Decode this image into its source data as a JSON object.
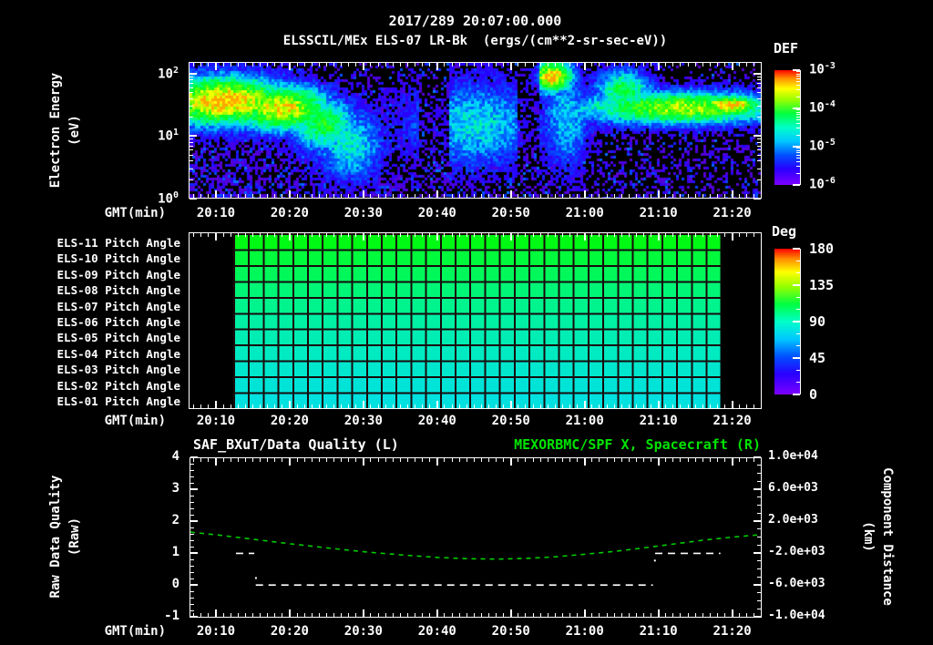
{
  "header": {
    "datetime": "2017/289 20:07:00.000",
    "subtitle": "ELSSCIL/MEx ELS-07 LR-Bk  (ergs/(cm**2-sr-sec-eV))"
  },
  "xaxis": {
    "label": "GMT(min)",
    "tick_labels": [
      "20:10",
      "20:20",
      "20:30",
      "20:40",
      "20:50",
      "21:00",
      "21:10",
      "21:20"
    ],
    "tick_minutes": [
      10,
      20,
      30,
      40,
      50,
      60,
      70,
      80
    ],
    "start_minute": 6.3,
    "end_minute": 84.0
  },
  "spectrogram_axis": {
    "ylabel_lines": [
      "Electron Energy",
      "(eV)"
    ],
    "ytick_exponents": [
      "2",
      "1",
      "0"
    ],
    "colorbar_title": "DEF",
    "colorbar_tick_exponents": [
      "-3",
      "-4",
      "-5",
      "-6"
    ]
  },
  "pitch_axis": {
    "row_labels": [
      "ELS-11 Pitch Angle",
      "ELS-10 Pitch Angle",
      "ELS-09 Pitch Angle",
      "ELS-08 Pitch Angle",
      "ELS-07 Pitch Angle",
      "ELS-06 Pitch Angle",
      "ELS-05 Pitch Angle",
      "ELS-04 Pitch Angle",
      "ELS-03 Pitch Angle",
      "ELS-02 Pitch Angle",
      "ELS-01 Pitch Angle"
    ],
    "colorbar_title": "Deg",
    "colorbar_ticks": [
      "180",
      "135",
      "90",
      "45",
      "0"
    ]
  },
  "bottom_axis": {
    "title_left": "SAF_BXuT/Data Quality (L)",
    "title_right": "MEXORBMC/SPF X, Spacecraft (R)",
    "title_right_color": "#00e400",
    "ylabel_left_lines": [
      "Raw Data Quality",
      "(Raw)"
    ],
    "ylabel_right_lines": [
      "Component Distance",
      "(km)"
    ],
    "yticks_left": [
      "4",
      "3",
      "2",
      "1",
      "0",
      "-1"
    ],
    "yticks_right": [
      "1.0e+04",
      "6.0e+03",
      "2.0e+03",
      "-2.0e+03",
      "-6.0e+03",
      "-1.0e+04"
    ]
  },
  "colors": {
    "background": "#000000",
    "axis": "#ffffff",
    "grid_line": "#170b0b",
    "quality_series": "#ffffff",
    "distance_series": "#00cc00"
  },
  "chart_data": [
    {
      "type": "heatmap",
      "name": "electron-energy-spectrogram",
      "title": "ELSSCIL/MEx ELS-07 LR-Bk",
      "units": "ergs/(cm**2-sr-sec-eV)",
      "xlabel": "GMT(min)",
      "ylabel": "Electron Energy (eV)",
      "x_range_gmt": [
        "20:06",
        "21:24"
      ],
      "y_scale": "log",
      "y_range_ev": [
        1,
        158
      ],
      "color_scale": {
        "label": "DEF",
        "min_exp": -6,
        "max_exp": -3,
        "scale": "log"
      },
      "features": [
        {
          "desc": "bright flux band 20:07-20:18 ~20-80 eV",
          "cx": 0.06,
          "sx": 0.1,
          "cy": 0.28,
          "sy": 0.15,
          "amp": 0.93
        },
        {
          "desc": "band continuation",
          "cx": 0.16,
          "sx": 0.07,
          "cy": 0.33,
          "sy": 0.14,
          "amp": 0.88
        },
        {
          "desc": "sloping band tail",
          "cx": 0.235,
          "sx": 0.05,
          "cy": 0.45,
          "sy": 0.16,
          "amp": 0.66
        },
        {
          "desc": "cyan blob 20:22-20:30 low energy",
          "cx": 0.28,
          "sx": 0.05,
          "cy": 0.6,
          "sy": 0.22,
          "amp": 0.5
        },
        {
          "desc": "mid cyan speckle 20:40-20:52",
          "cx": 0.5,
          "sx": 0.1,
          "cy": 0.45,
          "sy": 0.26,
          "amp": 0.47
        },
        {
          "desc": "bright streaks ~20:55 high energy",
          "cx": 0.635,
          "sx": 0.03,
          "cy": 0.1,
          "sy": 0.1,
          "amp": 0.92
        },
        {
          "desc": "streak tail downward",
          "cx": 0.66,
          "sx": 0.035,
          "cy": 0.4,
          "sy": 0.3,
          "amp": 0.45
        },
        {
          "desc": "green patch ~21:03 top",
          "cx": 0.76,
          "sx": 0.04,
          "cy": 0.2,
          "sy": 0.12,
          "amp": 0.65
        },
        {
          "desc": "right flux band 21:05-21:24 ~20-60 eV",
          "cx": 0.86,
          "sx": 0.15,
          "cy": 0.33,
          "sy": 0.1,
          "amp": 0.8
        },
        {
          "desc": "right band yellow hotspot ~21:15",
          "cx": 0.945,
          "sx": 0.05,
          "cy": 0.31,
          "sy": 0.06,
          "amp": 0.93
        }
      ],
      "gaps": [
        {
          "from": 0.4,
          "to": 0.455,
          "factor": 0.25
        },
        {
          "from": 0.575,
          "to": 0.612,
          "factor": 0.4
        }
      ]
    },
    {
      "type": "heatmap",
      "name": "pitch-angle-panel",
      "color_scale": {
        "label": "Deg",
        "min": 0,
        "max": 180
      },
      "data_start_minute": 12.35,
      "data_end_minute": 78.4,
      "cell_minutes": 2,
      "rows": [
        {
          "label": "ELS-11 Pitch Angle",
          "angle_deg": 118,
          "color": "#00fa14"
        },
        {
          "label": "ELS-10 Pitch Angle",
          "angle_deg": 114,
          "color": "#00fa3c"
        },
        {
          "label": "ELS-09 Pitch Angle",
          "angle_deg": 110,
          "color": "#00f85a"
        },
        {
          "label": "ELS-08 Pitch Angle",
          "angle_deg": 106,
          "color": "#00f676"
        },
        {
          "label": "ELS-07 Pitch Angle",
          "angle_deg": 102,
          "color": "#00f48e"
        },
        {
          "label": "ELS-06 Pitch Angle",
          "angle_deg": 98,
          "color": "#00f1a4"
        },
        {
          "label": "ELS-05 Pitch Angle",
          "angle_deg": 94,
          "color": "#00eeb4"
        },
        {
          "label": "ELS-04 Pitch Angle",
          "angle_deg": 90,
          "color": "#00ebc2"
        },
        {
          "label": "ELS-03 Pitch Angle",
          "angle_deg": 86,
          "color": "#00e7ce"
        },
        {
          "label": "ELS-02 Pitch Angle",
          "angle_deg": 82,
          "color": "#00e4d8"
        },
        {
          "label": "ELS-01 Pitch Angle",
          "angle_deg": 78,
          "color": "#00e1e0"
        }
      ]
    },
    {
      "type": "line",
      "name": "quality-and-distance",
      "ylim_left": [
        -1,
        4
      ],
      "ylim_right": [
        -10000,
        10000
      ],
      "series": [
        {
          "name": "MEXORBMC/SPF X, Spacecraft (R)",
          "axis": "right",
          "style": "dashed",
          "color": "#00cc00",
          "x_minutes": [
            6.3,
            10,
            15,
            20,
            25,
            30,
            35,
            40,
            44,
            48,
            52,
            56,
            60,
            64,
            68,
            72,
            76,
            80,
            84
          ],
          "km": [
            680,
            320,
            -240,
            -800,
            -1320,
            -1800,
            -2200,
            -2520,
            -2680,
            -2720,
            -2640,
            -2440,
            -2120,
            -1760,
            -1320,
            -840,
            -360,
            40,
            360
          ]
        },
        {
          "name": "SAF_BXuT/Data Quality (L)",
          "axis": "left",
          "style": "dashed",
          "color": "#ffffff",
          "segments": [
            {
              "value": 1,
              "from_min": 12.5,
              "to_min": 15.0
            },
            {
              "value": 0,
              "from_min": 15.2,
              "to_min": 69.3
            },
            {
              "value": 1,
              "from_min": 69.6,
              "to_min": 78.5
            }
          ],
          "transition_dots": [
            {
              "min": 15.1,
              "value": 0.25
            },
            {
              "min": 69.45,
              "value": 0.8
            }
          ]
        }
      ]
    }
  ]
}
